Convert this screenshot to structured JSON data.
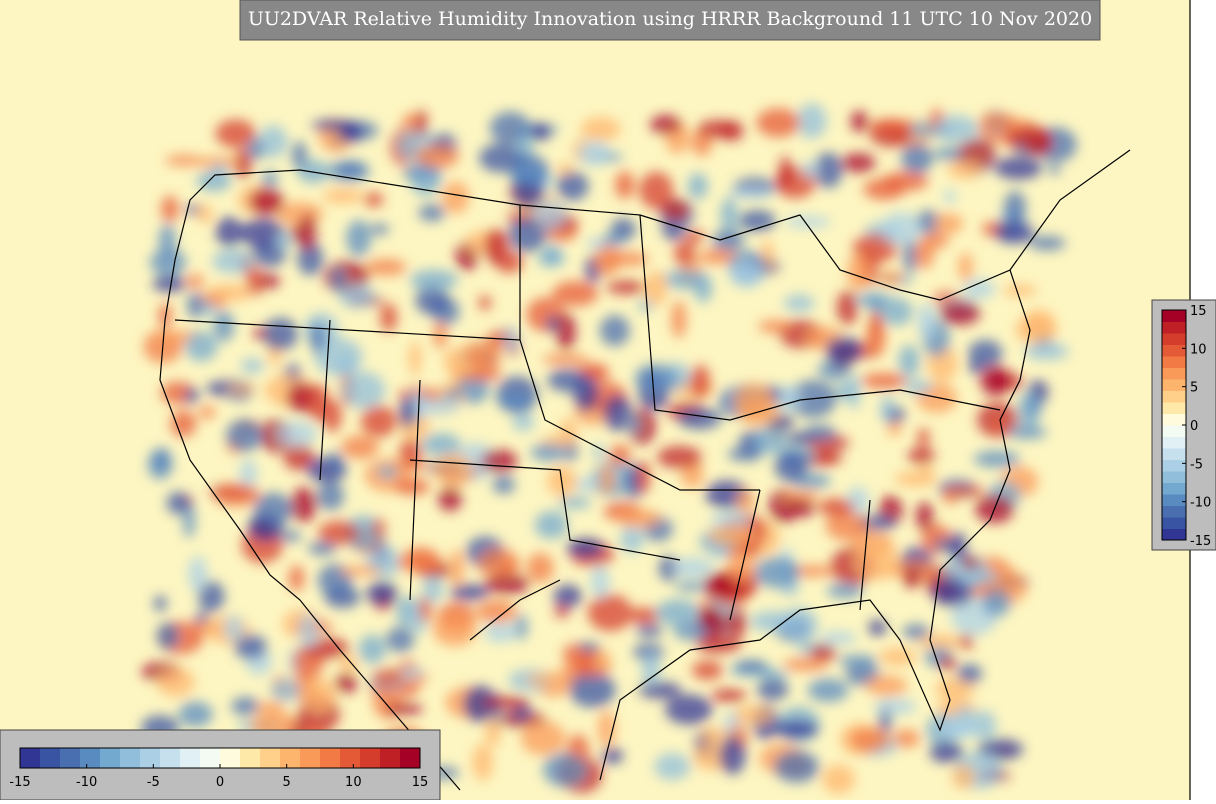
{
  "title": "UU2DVAR Relative Humidity Innovation using HRRR Background 11 UTC 10 Nov 2020",
  "colorbar": {
    "lim": [
      -15,
      15
    ],
    "ticks": [
      -15,
      -10,
      -5,
      0,
      5,
      10,
      15
    ],
    "colors": [
      "#313695",
      "#3a54a4",
      "#4a6fb0",
      "#5a8bc0",
      "#74a9cf",
      "#91bfdb",
      "#abd0e6",
      "#c6e0ee",
      "#e0f0f5",
      "#f4fbf2",
      "#fffbdc",
      "#fee9a8",
      "#fed08a",
      "#fdb56e",
      "#f99a58",
      "#f27b45",
      "#e55a36",
      "#d43d2c",
      "#bf2026",
      "#a50026"
    ],
    "placements": [
      "bottom-left",
      "right"
    ]
  }
}
